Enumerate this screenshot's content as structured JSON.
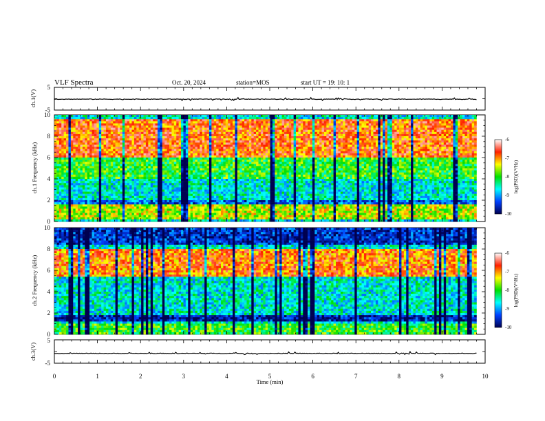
{
  "header": {
    "title": "VLF Spectra",
    "date": "Oct. 20, 2024",
    "station": "station=MOS",
    "start": "start  UT =   19: 10: 1"
  },
  "colorbar": {
    "label": "log(PSD)(V²/Hz)",
    "ticks": [
      "-6",
      "-7",
      "-8",
      "-9",
      "-10"
    ],
    "stops": [
      "#ffffff",
      "#ff2000",
      "#ffff00",
      "#00e000",
      "#00ffff",
      "#0040ff",
      "#000050"
    ]
  },
  "chart_data": [
    {
      "type": "line",
      "name": "ch1-waveform",
      "ylabel": "ch.1(V)",
      "ylim": [
        -5,
        5
      ],
      "yticks": [
        "5",
        "-5"
      ],
      "xlim": [
        0,
        10
      ],
      "values_approx": "near zero with small spikes",
      "level": -0.2
    },
    {
      "type": "heatmap",
      "name": "ch1-spectrogram",
      "ylabel": "ch.1 Frequency (kHz)",
      "ylim": [
        0,
        10
      ],
      "yticks": [
        "0",
        "2",
        "4",
        "6",
        "8",
        "10"
      ],
      "xlim": [
        0,
        9.8
      ],
      "zlim": [
        -10,
        -6
      ],
      "features": [
        {
          "band": [
            6,
            9.5
          ],
          "log_psd": -6.8
        },
        {
          "band": [
            4,
            6
          ],
          "log_psd": -8.0
        },
        {
          "band": [
            1.5,
            2
          ],
          "log_psd": -9.3
        },
        {
          "band": [
            0.3,
            1.5
          ],
          "log_psd": -7.5
        }
      ]
    },
    {
      "type": "heatmap",
      "name": "ch2-spectrogram",
      "ylabel": "ch.2 Frequency (kHz)",
      "ylim": [
        0,
        10
      ],
      "yticks": [
        "0",
        "2",
        "4",
        "6",
        "8",
        "10"
      ],
      "xlim": [
        0,
        9.8
      ],
      "zlim": [
        -10,
        -6
      ],
      "features": [
        {
          "band": [
            5.5,
            8
          ],
          "log_psd": -6.9
        },
        {
          "band": [
            8.5,
            10
          ],
          "log_psd": -9.5
        },
        {
          "band": [
            1.2,
            1.8
          ],
          "log_psd": -9.6
        },
        {
          "band": [
            0,
            1
          ],
          "log_psd": -8.0
        }
      ]
    },
    {
      "type": "line",
      "name": "ch3-waveform",
      "ylabel": "ch.3(V)",
      "ylim": [
        -5,
        5
      ],
      "yticks": [
        "5",
        "-5"
      ],
      "xlim": [
        0,
        10
      ],
      "values_approx": "near zero with small spikes",
      "level": -0.8
    }
  ],
  "xaxis": {
    "label": "Time  (min)",
    "ticks": [
      "0",
      "1",
      "2",
      "3",
      "4",
      "5",
      "6",
      "7",
      "8",
      "9",
      "10"
    ],
    "range": [
      0,
      10
    ]
  }
}
